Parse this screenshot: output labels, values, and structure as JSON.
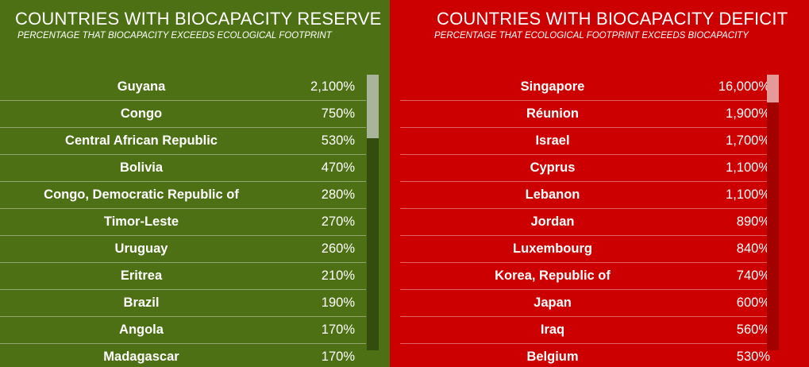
{
  "reserve": {
    "title": "COUNTRIES WITH BIOCAPACITY RESERVE",
    "subtitle": "PERCENTAGE THAT BIOCAPACITY EXCEEDS ECOLOGICAL FOOTPRINT",
    "color": "#4e7015",
    "rows": [
      {
        "name": "Guyana",
        "value": "2,100%"
      },
      {
        "name": "Congo",
        "value": "750%"
      },
      {
        "name": "Central African Republic",
        "value": "530%"
      },
      {
        "name": "Bolivia",
        "value": "470%"
      },
      {
        "name": "Congo, Democratic Republic of",
        "value": "280%"
      },
      {
        "name": "Timor-Leste",
        "value": "270%"
      },
      {
        "name": "Uruguay",
        "value": "260%"
      },
      {
        "name": "Eritrea",
        "value": "210%"
      },
      {
        "name": "Brazil",
        "value": "190%"
      },
      {
        "name": "Angola",
        "value": "170%"
      },
      {
        "name": "Madagascar",
        "value": "170%"
      }
    ]
  },
  "deficit": {
    "title": "COUNTRIES WITH BIOCAPACITY DEFICIT",
    "subtitle": "PERCENTAGE THAT ECOLOGICAL FOOTPRINT EXCEEDS BIOCAPACITY",
    "color": "#cc0000",
    "rows": [
      {
        "name": "Singapore",
        "value": "16,000%"
      },
      {
        "name": "Réunion",
        "value": "1,900%"
      },
      {
        "name": "Israel",
        "value": "1,700%"
      },
      {
        "name": "Cyprus",
        "value": "1,100%"
      },
      {
        "name": "Lebanon",
        "value": "1,100%"
      },
      {
        "name": "Jordan",
        "value": "890%"
      },
      {
        "name": "Luxembourg",
        "value": "840%"
      },
      {
        "name": "Korea, Republic of",
        "value": "740%"
      },
      {
        "name": "Japan",
        "value": "600%"
      },
      {
        "name": "Iraq",
        "value": "560%"
      },
      {
        "name": "Belgium",
        "value": "530%"
      }
    ]
  }
}
